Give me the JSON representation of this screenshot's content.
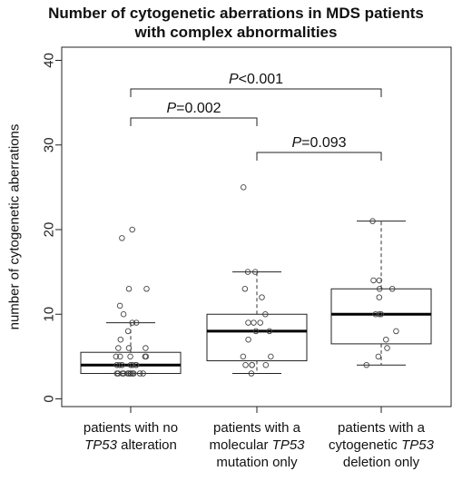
{
  "chart_data": {
    "type": "box",
    "title": "Number of cytogenetic aberrations in MDS patients",
    "subtitle": "with complex abnormalities",
    "ylabel": "number of cytogenetic aberrations",
    "xlabel": "",
    "ylim": [
      0,
      40
    ],
    "yticks": [
      0,
      10,
      20,
      30,
      40
    ],
    "grid": false,
    "categories": [
      "patients with no TP53 alteration",
      "patients with a molecular TP53 mutation only",
      "patients with a cytogenetic TP53 deletion only"
    ],
    "category_label_lines": [
      [
        [
          {
            "t": "patients with no",
            "i": false
          }
        ],
        [
          {
            "t": "TP53",
            "i": true
          },
          {
            "t": " alteration",
            "i": false
          }
        ]
      ],
      [
        [
          {
            "t": "patients with a",
            "i": false
          }
        ],
        [
          {
            "t": "molecular ",
            "i": false
          },
          {
            "t": "TP53",
            "i": true
          }
        ],
        [
          {
            "t": "mutation only",
            "i": false
          }
        ]
      ],
      [
        [
          {
            "t": "patients with a",
            "i": false
          }
        ],
        [
          {
            "t": "cytogenetic ",
            "i": false
          },
          {
            "t": "TP53",
            "i": true
          }
        ],
        [
          {
            "t": "deletion only",
            "i": false
          }
        ]
      ]
    ],
    "boxes": [
      {
        "min": 3,
        "q1": 3,
        "median": 4,
        "q3": 5.5,
        "max": 9
      },
      {
        "min": 3,
        "q1": 4.5,
        "median": 8,
        "q3": 10,
        "max": 15
      },
      {
        "min": 4,
        "q1": 6.5,
        "median": 10,
        "q3": 13,
        "max": 21
      }
    ],
    "points": [
      [
        3,
        3,
        3,
        3,
        3,
        3,
        3,
        3,
        3,
        3,
        3,
        3,
        4,
        4,
        4,
        4,
        4,
        4,
        4,
        5,
        5,
        5,
        5,
        5,
        6,
        6,
        6,
        7,
        8,
        9,
        9,
        10,
        11,
        13,
        13,
        19,
        20
      ],
      [
        3,
        4,
        4,
        4,
        4,
        5,
        5,
        7,
        8,
        8,
        9,
        9,
        9,
        10,
        12,
        13,
        15,
        15,
        25
      ],
      [
        4,
        5,
        6,
        7,
        8,
        10,
        10,
        10,
        12,
        13,
        13,
        14,
        14,
        21
      ]
    ],
    "comparisons": [
      {
        "group1": 1,
        "group2": 2,
        "label_italic": "P",
        "label_rest": "=0.002"
      },
      {
        "group1": 2,
        "group2": 3,
        "label_italic": "P",
        "label_rest": "=0.093"
      },
      {
        "group1": 1,
        "group2": 3,
        "label_italic": "P",
        "label_rest": "<0.001"
      }
    ]
  }
}
